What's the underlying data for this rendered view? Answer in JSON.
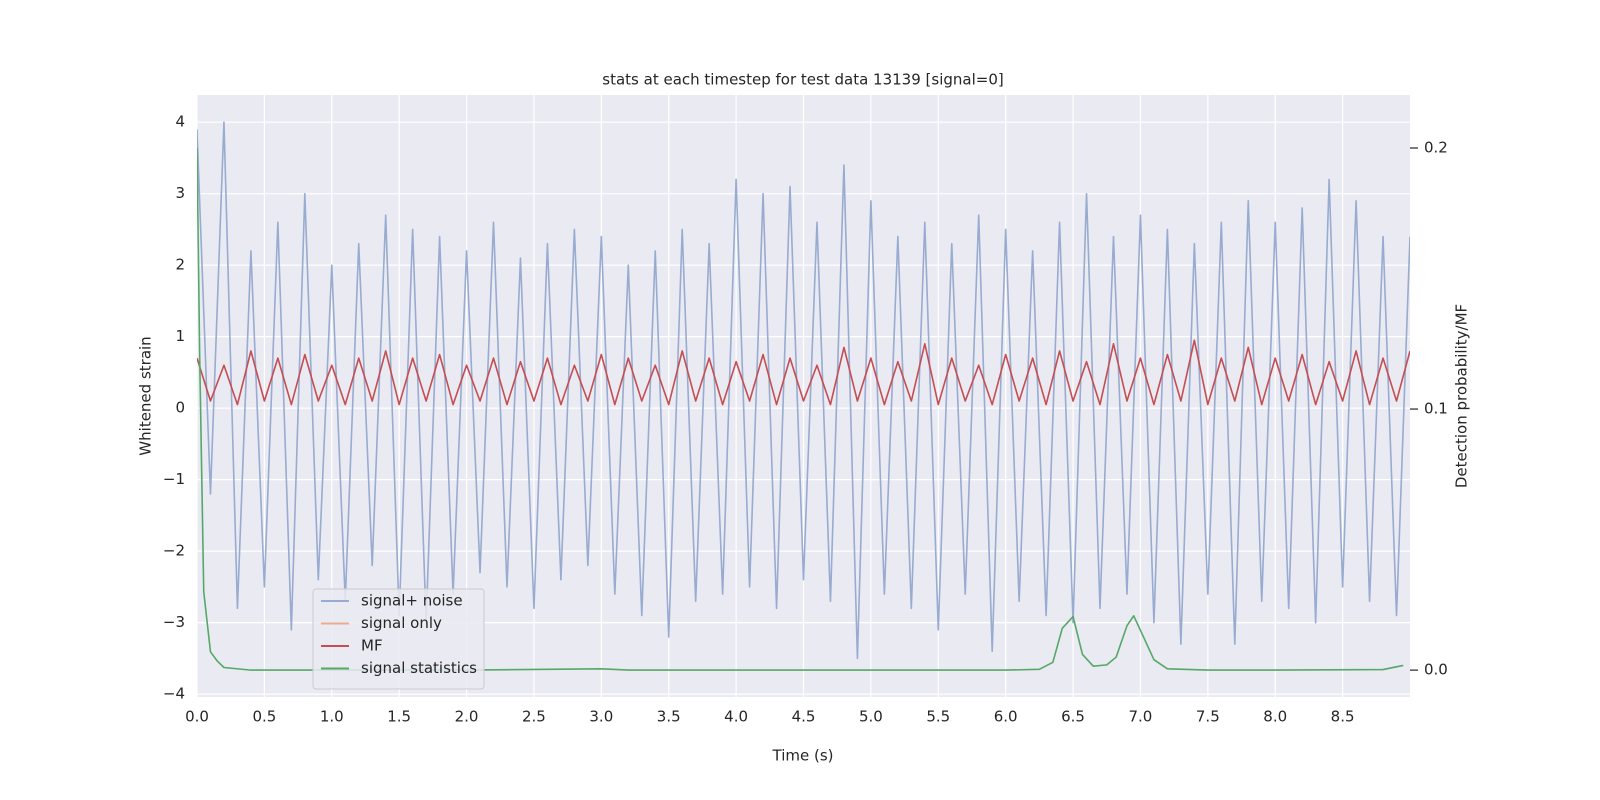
{
  "chart_data": {
    "type": "line",
    "title": "stats at each timestep for test data 13139 [signal=0]",
    "x_label": "Time (s)",
    "y_label": "Whitened strain",
    "y2_label": "Detection probability/MF",
    "xlim": [
      0,
      9.0
    ],
    "ylim": [
      -4.04,
      4.38
    ],
    "y2lim": [
      -0.0103,
      0.2203
    ],
    "xticks": [
      {
        "value": 0,
        "label": "0.0"
      },
      {
        "value": 0.5,
        "label": "0.5"
      },
      {
        "value": 1,
        "label": "1.0"
      },
      {
        "value": 1.5,
        "label": "1.5"
      },
      {
        "value": 2,
        "label": "2.0"
      },
      {
        "value": 2.5,
        "label": "2.5"
      },
      {
        "value": 3,
        "label": "3.0"
      },
      {
        "value": 3.5,
        "label": "3.5"
      },
      {
        "value": 4,
        "label": "4.0"
      },
      {
        "value": 4.5,
        "label": "4.5"
      },
      {
        "value": 5,
        "label": "5.0"
      },
      {
        "value": 5.5,
        "label": "5.5"
      },
      {
        "value": 6,
        "label": "6.0"
      },
      {
        "value": 6.5,
        "label": "6.5"
      },
      {
        "value": 7,
        "label": "7.0"
      },
      {
        "value": 7.5,
        "label": "7.5"
      },
      {
        "value": 8,
        "label": "8.0"
      },
      {
        "value": 8.5,
        "label": "8.5"
      }
    ],
    "yticks": [
      {
        "value": -4,
        "label": "−4"
      },
      {
        "value": -3,
        "label": "−3"
      },
      {
        "value": -2,
        "label": "−2"
      },
      {
        "value": -1,
        "label": "−1"
      },
      0,
      1,
      2,
      3,
      4
    ],
    "y2ticks": [
      {
        "value": 0,
        "label": "0.0"
      },
      {
        "value": 0.1,
        "label": "0.1"
      },
      {
        "value": 0.2,
        "label": "0.2"
      }
    ],
    "grid": true,
    "legend": "lower left",
    "series": [
      {
        "name": "signal+ noise",
        "color": "#98abd0",
        "x": [
          0,
          0.1,
          0.2,
          0.3,
          0.4,
          0.5,
          0.6,
          0.7,
          0.8,
          0.9,
          1,
          1.1,
          1.2,
          1.3,
          1.4,
          1.5,
          1.6,
          1.7,
          1.8,
          1.9,
          2,
          2.1,
          2.2,
          2.3,
          2.4,
          2.5,
          2.6,
          2.7,
          2.8,
          2.9,
          3,
          3.1,
          3.2,
          3.3,
          3.4,
          3.5,
          3.6,
          3.7,
          3.8,
          3.9,
          4,
          4.1,
          4.2,
          4.3,
          4.4,
          4.5,
          4.6,
          4.7,
          4.8,
          4.9,
          5,
          5.1,
          5.2,
          5.3,
          5.4,
          5.5,
          5.6,
          5.7,
          5.8,
          5.9,
          6,
          6.1,
          6.2,
          6.3,
          6.4,
          6.5,
          6.6,
          6.7,
          6.8,
          6.9,
          7,
          7.1,
          7.2,
          7.3,
          7.4,
          7.5,
          7.6,
          7.7,
          7.8,
          7.9,
          8,
          8.1,
          8.2,
          8.3,
          8.4,
          8.5,
          8.6,
          8.7,
          8.8,
          8.9,
          9
        ],
        "values": [
          3.9,
          -1.2,
          4.0,
          -2.8,
          2.2,
          -2.5,
          2.6,
          -3.1,
          3.0,
          -2.4,
          2.0,
          -2.7,
          2.3,
          -2.2,
          2.7,
          -2.9,
          2.5,
          -3.0,
          2.4,
          -2.6,
          2.2,
          -2.3,
          2.6,
          -2.5,
          2.1,
          -2.8,
          2.3,
          -2.4,
          2.5,
          -2.2,
          2.4,
          -2.6,
          2.0,
          -2.9,
          2.2,
          -3.2,
          2.5,
          -2.7,
          2.3,
          -2.6,
          3.2,
          -2.5,
          3.0,
          -2.8,
          3.1,
          -2.4,
          2.6,
          -2.7,
          3.4,
          -3.5,
          2.9,
          -2.6,
          2.4,
          -2.8,
          2.6,
          -3.1,
          2.3,
          -2.6,
          2.7,
          -3.4,
          2.5,
          -2.7,
          2.2,
          -2.9,
          2.6,
          -3.0,
          3.0,
          -2.8,
          2.4,
          -2.6,
          2.7,
          -3.0,
          2.5,
          -3.3,
          2.3,
          -2.6,
          2.6,
          -3.3,
          2.9,
          -2.7,
          2.6,
          -2.8,
          2.8,
          -3.0,
          3.2,
          -2.5,
          2.9,
          -2.7,
          2.4,
          -2.9,
          2.4
        ]
      },
      {
        "name": "signal only",
        "color": "#eeab8e",
        "x": [],
        "values": []
      },
      {
        "name": "MF",
        "color": "#c44e52",
        "x": [
          0,
          0.1,
          0.2,
          0.3,
          0.4,
          0.5,
          0.6,
          0.7,
          0.8,
          0.9,
          1,
          1.1,
          1.2,
          1.3,
          1.4,
          1.5,
          1.6,
          1.7,
          1.8,
          1.9,
          2,
          2.1,
          2.2,
          2.3,
          2.4,
          2.5,
          2.6,
          2.7,
          2.8,
          2.9,
          3,
          3.1,
          3.2,
          3.3,
          3.4,
          3.5,
          3.6,
          3.7,
          3.8,
          3.9,
          4,
          4.1,
          4.2,
          4.3,
          4.4,
          4.5,
          4.6,
          4.7,
          4.8,
          4.9,
          5,
          5.1,
          5.2,
          5.3,
          5.4,
          5.5,
          5.6,
          5.7,
          5.8,
          5.9,
          6,
          6.1,
          6.2,
          6.3,
          6.4,
          6.5,
          6.6,
          6.7,
          6.8,
          6.9,
          7,
          7.1,
          7.2,
          7.3,
          7.4,
          7.5,
          7.6,
          7.7,
          7.8,
          7.9,
          8,
          8.1,
          8.2,
          8.3,
          8.4,
          8.5,
          8.6,
          8.7,
          8.8,
          8.9,
          9
        ],
        "values": [
          0.7,
          0.1,
          0.6,
          0.05,
          0.8,
          0.1,
          0.7,
          0.05,
          0.75,
          0.1,
          0.6,
          0.05,
          0.7,
          0.1,
          0.8,
          0.05,
          0.7,
          0.1,
          0.75,
          0.05,
          0.6,
          0.1,
          0.7,
          0.05,
          0.65,
          0.1,
          0.7,
          0.05,
          0.6,
          0.1,
          0.75,
          0.05,
          0.7,
          0.1,
          0.6,
          0.05,
          0.8,
          0.1,
          0.7,
          0.05,
          0.65,
          0.1,
          0.75,
          0.05,
          0.7,
          0.1,
          0.6,
          0.05,
          0.85,
          0.1,
          0.7,
          0.05,
          0.65,
          0.1,
          0.9,
          0.05,
          0.7,
          0.1,
          0.6,
          0.05,
          0.75,
          0.1,
          0.7,
          0.05,
          0.8,
          0.1,
          0.65,
          0.05,
          0.9,
          0.1,
          0.7,
          0.05,
          0.75,
          0.1,
          0.95,
          0.05,
          0.7,
          0.1,
          0.85,
          0.05,
          0.7,
          0.1,
          0.75,
          0.05,
          0.65,
          0.1,
          0.8,
          0.05,
          0.7,
          0.1,
          0.8
        ]
      },
      {
        "name": "signal statistics",
        "color": "#55a868",
        "axis": "y2",
        "x": [
          0,
          0.02,
          0.05,
          0.1,
          0.15,
          0.2,
          0.4,
          1.0,
          2.0,
          3.0,
          3.2,
          4.0,
          5.0,
          6.0,
          6.25,
          6.35,
          6.42,
          6.5,
          6.57,
          6.65,
          6.75,
          6.82,
          6.9,
          6.95,
          7.02,
          7.1,
          7.2,
          7.5,
          8.0,
          8.8,
          8.95
        ],
        "values": [
          0.2,
          0.12,
          0.03,
          0.007,
          0.0035,
          0.001,
          0.0,
          0.0,
          0.0,
          0.0005,
          0.0,
          0.0,
          0.0,
          0.0,
          0.0003,
          0.003,
          0.016,
          0.0205,
          0.006,
          0.0015,
          0.002,
          0.005,
          0.017,
          0.0208,
          0.013,
          0.004,
          0.0005,
          0.0,
          0.0,
          0.0002,
          0.0018
        ]
      }
    ]
  }
}
